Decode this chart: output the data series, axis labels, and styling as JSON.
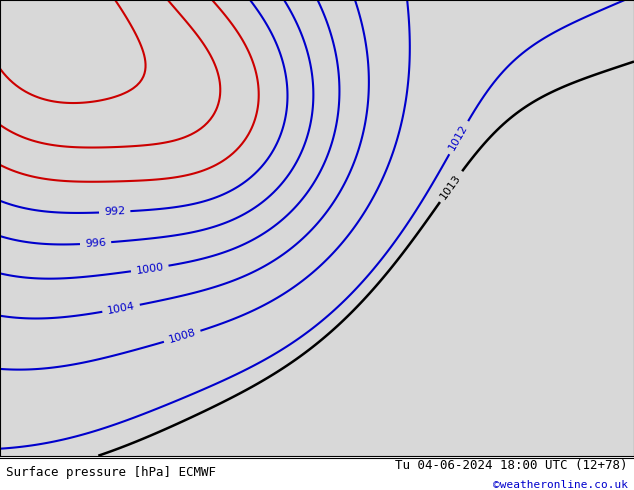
{
  "title_left": "Surface pressure [hPa] ECMWF",
  "title_right": "Tu 04-06-2024 18:00 UTC (12+78)",
  "credit": "©weatheronline.co.uk",
  "background_ocean": "#d8d8d8",
  "background_land": "#c8e8a0",
  "border_color": "#888888",
  "contour_blue_color": "#0000cc",
  "contour_black_color": "#000000",
  "contour_red_color": "#cc0000",
  "label_fontsize": 8,
  "title_fontsize": 9,
  "credit_fontsize": 8,
  "credit_color": "#0000cc",
  "extent": [
    -20,
    20,
    43,
    63
  ],
  "isobar_labels_blue": [
    996,
    1000,
    1004,
    1008,
    1012
  ],
  "isobar_labels_black": [
    1013
  ],
  "fig_width": 6.34,
  "fig_height": 4.9,
  "dpi": 100
}
